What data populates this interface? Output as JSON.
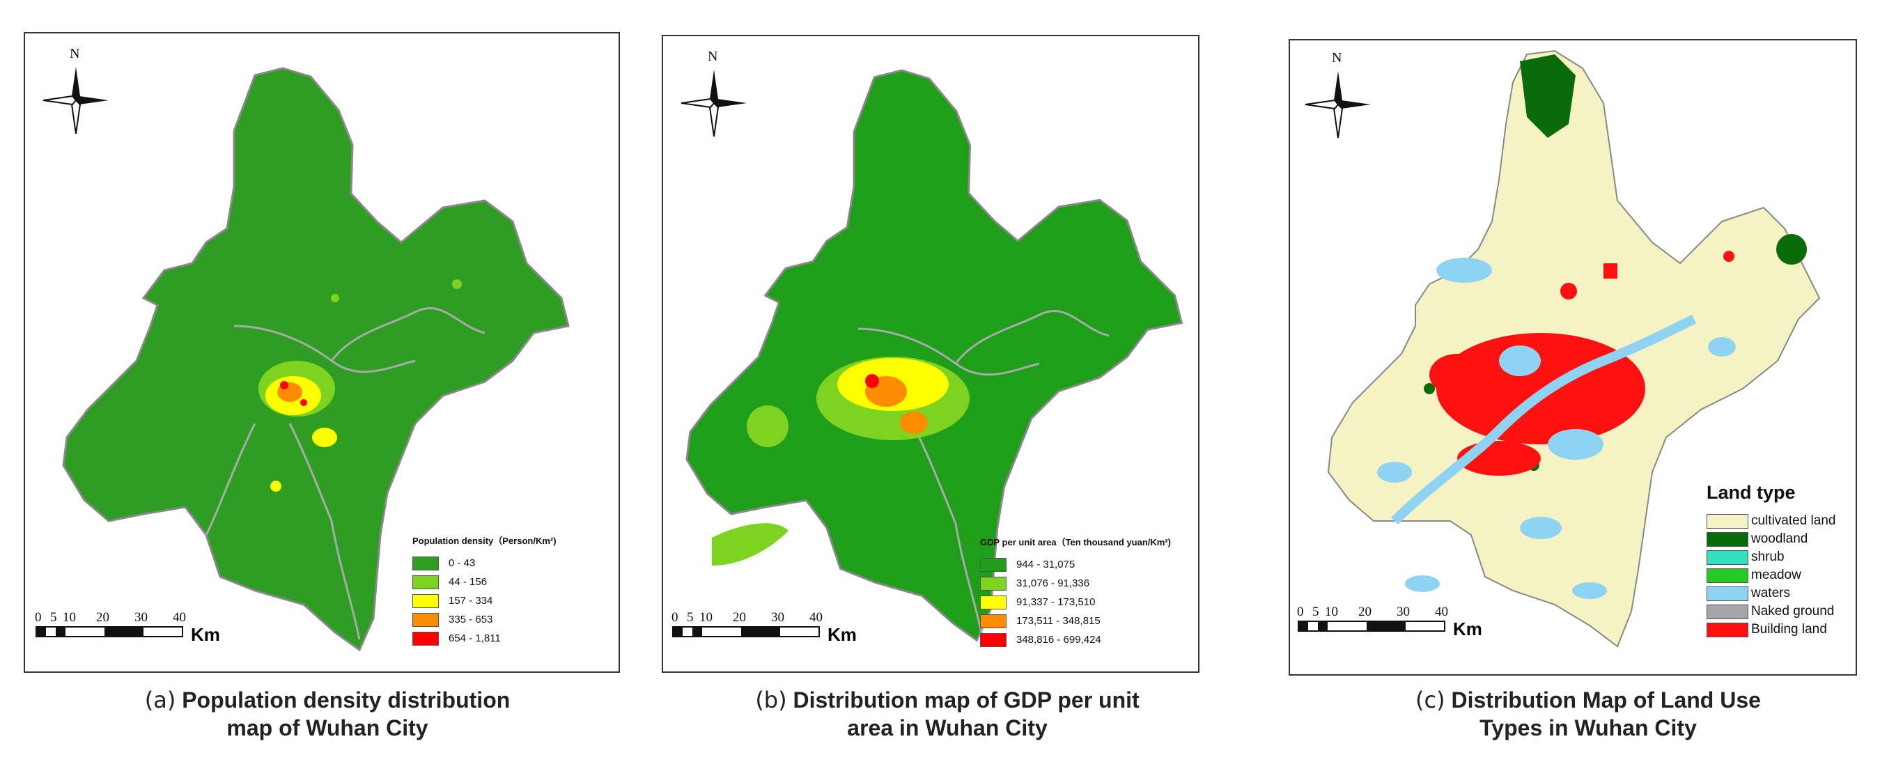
{
  "compass_label": "N",
  "scale": {
    "ticks": [
      "0",
      "5",
      "10",
      "20",
      "30",
      "40"
    ],
    "unit": "Km"
  },
  "panels": {
    "a": {
      "legend_title": "Population density（Person/Km²)",
      "legend": [
        {
          "label": "0 - 43",
          "color": "#2e9e22"
        },
        {
          "label": "44 - 156",
          "color": "#7ed321"
        },
        {
          "label": "157 - 334",
          "color": "#ffff00"
        },
        {
          "label": "335 - 653",
          "color": "#ff8c00"
        },
        {
          "label": "654 - 1,811",
          "color": "#ff0000"
        }
      ],
      "caption_tag": "(a)",
      "caption_line1": "Population density distribution",
      "caption_line2": "map of Wuhan City"
    },
    "b": {
      "legend_title": "GDP per unit area（Ten thousand yuan/Km²)",
      "legend": [
        {
          "label": "944 - 31,075",
          "color": "#1f9e1a"
        },
        {
          "label": "31,076 - 91,336",
          "color": "#7ed321"
        },
        {
          "label": "91,337 - 173,510",
          "color": "#ffff00"
        },
        {
          "label": "173,511 - 348,815",
          "color": "#ff8c00"
        },
        {
          "label": "348,816 - 699,424",
          "color": "#ff0000"
        }
      ],
      "caption_tag": "(b)",
      "caption_line1": "Distribution map of GDP per unit",
      "caption_line2": "area in Wuhan City"
    },
    "c": {
      "legend_title": "Land  type",
      "legend": [
        {
          "label": "cultivated land",
          "color": "#f5f3c4"
        },
        {
          "label": "woodland",
          "color": "#0b6b0b"
        },
        {
          "label": "shrub",
          "color": "#33e0c0"
        },
        {
          "label": "meadow",
          "color": "#22cc22"
        },
        {
          "label": "waters",
          "color": "#8fd3f2"
        },
        {
          "label": "Naked ground",
          "color": "#a6a6a6"
        },
        {
          "label": "Building land",
          "color": "#ff1010"
        }
      ],
      "caption_tag": "(c)",
      "caption_line1": "Distribution Map of Land Use",
      "caption_line2": "Types in Wuhan City"
    }
  }
}
